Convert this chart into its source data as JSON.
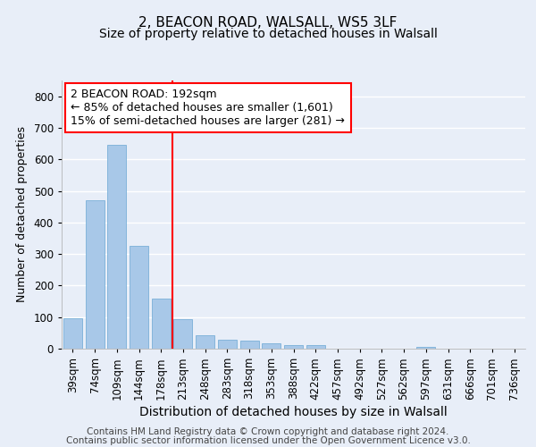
{
  "title1": "2, BEACON ROAD, WALSALL, WS5 3LF",
  "title2": "Size of property relative to detached houses in Walsall",
  "xlabel": "Distribution of detached houses by size in Walsall",
  "ylabel": "Number of detached properties",
  "categories": [
    "39sqm",
    "74sqm",
    "109sqm",
    "144sqm",
    "178sqm",
    "213sqm",
    "248sqm",
    "283sqm",
    "318sqm",
    "353sqm",
    "388sqm",
    "422sqm",
    "457sqm",
    "492sqm",
    "527sqm",
    "562sqm",
    "597sqm",
    "631sqm",
    "666sqm",
    "701sqm",
    "736sqm"
  ],
  "values": [
    97,
    470,
    645,
    325,
    160,
    93,
    43,
    29,
    25,
    16,
    10,
    10,
    0,
    0,
    0,
    0,
    5,
    0,
    0,
    0,
    0
  ],
  "bar_color": "#a8c8e8",
  "bar_edge_color": "#7ab0d8",
  "red_line_x": 4.5,
  "annotation_text": "2 BEACON ROAD: 192sqm\n← 85% of detached houses are smaller (1,601)\n15% of semi-detached houses are larger (281) →",
  "ylim": [
    0,
    850
  ],
  "yticks": [
    0,
    100,
    200,
    300,
    400,
    500,
    600,
    700,
    800
  ],
  "footnote1": "Contains HM Land Registry data © Crown copyright and database right 2024.",
  "footnote2": "Contains public sector information licensed under the Open Government Licence v3.0.",
  "background_color": "#e8eef8",
  "grid_color": "#ffffff",
  "title1_fontsize": 11,
  "title2_fontsize": 10,
  "xlabel_fontsize": 10,
  "ylabel_fontsize": 9,
  "tick_fontsize": 8.5,
  "annot_fontsize": 9,
  "footnote_fontsize": 7.5
}
